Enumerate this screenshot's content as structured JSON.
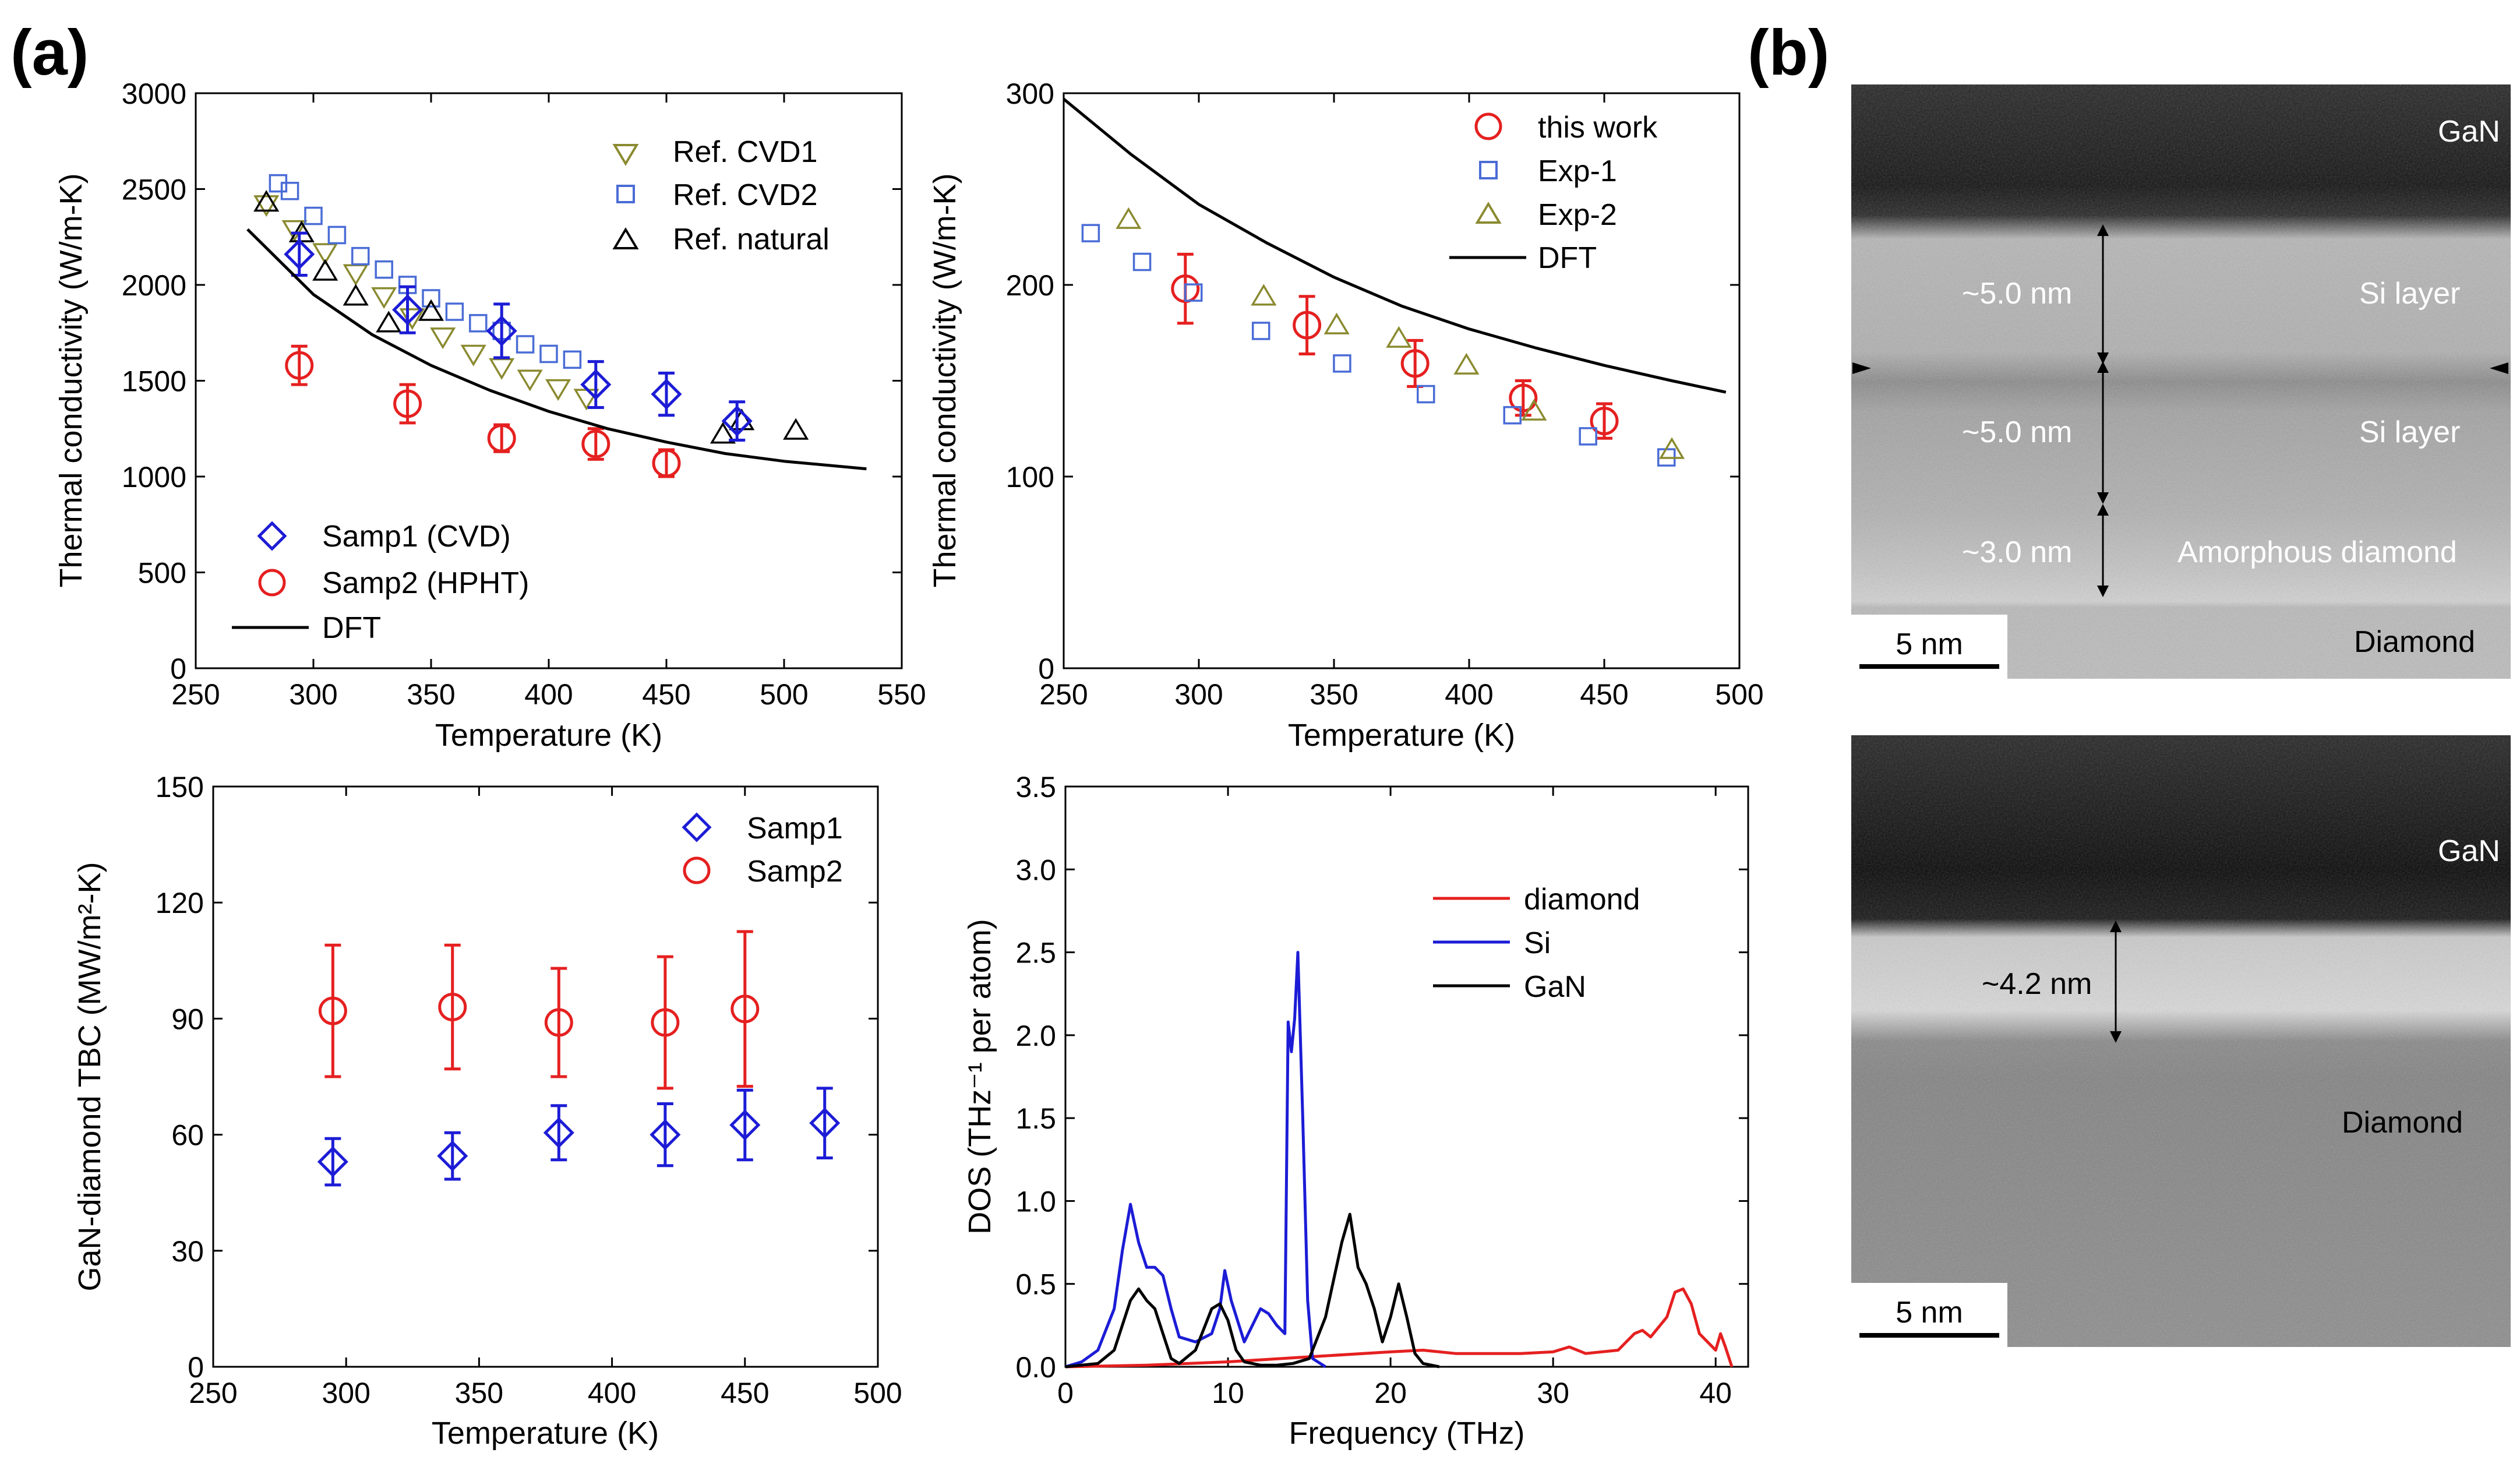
{
  "panel_labels": {
    "a": "(a)",
    "b": "(b)"
  },
  "colors": {
    "blue": "#1c1cd6",
    "red": "#e52020",
    "olive": "#8a8a30",
    "lightblue": "#4a6cd6",
    "black": "#000000"
  },
  "chart_data": [
    {
      "id": "top-left",
      "type": "scatter",
      "xlabel": "Temperature (K)",
      "ylabel": "Thermal conductivity (W/m-K)",
      "xlim": [
        250,
        550
      ],
      "ylim": [
        0,
        3000
      ],
      "xticks": [
        250,
        300,
        350,
        400,
        450,
        500,
        550
      ],
      "yticks": [
        0,
        500,
        1000,
        1500,
        2000,
        2500,
        3000
      ],
      "legend_top": [
        "Ref. CVD1",
        "Ref. CVD2",
        "Ref. natural"
      ],
      "legend_bottom": [
        "Samp1 (CVD)",
        "Samp2 (HPHT)",
        "DFT"
      ],
      "series": [
        {
          "name": "Ref. CVD1",
          "marker": "tri-down",
          "color": "#8a8a30",
          "x": [
            280,
            292,
            305,
            318,
            330,
            342,
            355,
            368,
            380,
            392,
            404,
            416
          ],
          "y": [
            2420,
            2290,
            2170,
            2060,
            1940,
            1830,
            1730,
            1640,
            1570,
            1510,
            1460,
            1410
          ]
        },
        {
          "name": "Ref. CVD2",
          "marker": "square",
          "color": "#4a6cd6",
          "x": [
            285,
            290,
            300,
            310,
            320,
            330,
            340,
            350,
            360,
            370,
            380,
            390,
            400,
            410
          ],
          "y": [
            2530,
            2490,
            2360,
            2260,
            2150,
            2080,
            2000,
            1930,
            1860,
            1800,
            1760,
            1690,
            1640,
            1610
          ]
        },
        {
          "name": "Ref. natural",
          "marker": "tri-up",
          "color": "#000000",
          "x": [
            280,
            295,
            305,
            318,
            332,
            350,
            474,
            482,
            505
          ],
          "y": [
            2430,
            2270,
            2070,
            1940,
            1800,
            1860,
            1220,
            1290,
            1240
          ]
        },
        {
          "name": "Samp1 (CVD)",
          "marker": "diamond",
          "color": "#1c1cd6",
          "x": [
            294,
            340,
            380,
            420,
            450,
            480
          ],
          "y": [
            2160,
            1870,
            1760,
            1480,
            1430,
            1290
          ],
          "err": [
            110,
            120,
            140,
            120,
            110,
            100
          ]
        },
        {
          "name": "Samp2 (HPHT)",
          "marker": "circle",
          "color": "#e52020",
          "x": [
            294,
            340,
            380,
            420,
            450
          ],
          "y": [
            1580,
            1380,
            1200,
            1170,
            1070
          ],
          "err": [
            100,
            100,
            70,
            80,
            70
          ]
        },
        {
          "name": "DFT",
          "marker": "line",
          "color": "#000000",
          "x": [
            272,
            300,
            325,
            350,
            375,
            400,
            425,
            450,
            475,
            500,
            535
          ],
          "y": [
            2290,
            1950,
            1740,
            1580,
            1450,
            1340,
            1250,
            1180,
            1120,
            1080,
            1040
          ]
        }
      ]
    },
    {
      "id": "top-right",
      "type": "scatter",
      "xlabel": "Temperature (K)",
      "ylabel": "Thermal conductivity (W/m-K)",
      "xlim": [
        250,
        500
      ],
      "ylim": [
        0,
        300
      ],
      "xticks": [
        250,
        300,
        350,
        400,
        450,
        500
      ],
      "yticks": [
        0,
        100,
        200,
        300
      ],
      "legend": [
        "this work",
        "Exp-1",
        "Exp-2",
        "DFT"
      ],
      "series": [
        {
          "name": "this work",
          "marker": "circle",
          "color": "#e52020",
          "x": [
            295,
            340,
            380,
            420,
            450
          ],
          "y": [
            198,
            179,
            159,
            141,
            129
          ],
          "err": [
            18,
            15,
            12,
            9,
            9
          ]
        },
        {
          "name": "Exp-1",
          "marker": "square",
          "color": "#4a6cd6",
          "x": [
            260,
            279,
            298,
            323,
            353,
            384,
            416,
            444,
            473
          ],
          "y": [
            227,
            212,
            196,
            176,
            159,
            143,
            132,
            121,
            110
          ]
        },
        {
          "name": "Exp-2",
          "marker": "tri-up",
          "color": "#8a8a30",
          "x": [
            274,
            324,
            351,
            374,
            399,
            424,
            475
          ],
          "y": [
            234,
            194,
            179,
            172,
            158,
            134,
            114
          ]
        },
        {
          "name": "DFT",
          "marker": "line",
          "color": "#000000",
          "x": [
            250,
            275,
            300,
            325,
            350,
            375,
            400,
            425,
            450,
            475,
            495
          ],
          "y": [
            297,
            268,
            242,
            222,
            204,
            189,
            177,
            167,
            158,
            150,
            144
          ]
        }
      ]
    },
    {
      "id": "bottom-left",
      "type": "scatter",
      "xlabel": "Temperature (K)",
      "ylabel": "GaN-diamond TBC (MW/m²-K)",
      "xlim": [
        250,
        500
      ],
      "ylim": [
        0,
        150
      ],
      "xticks": [
        250,
        300,
        350,
        400,
        450,
        500
      ],
      "yticks": [
        0,
        30,
        60,
        90,
        120,
        150
      ],
      "legend": [
        "Samp1",
        "Samp2"
      ],
      "series": [
        {
          "name": "Samp1",
          "marker": "diamond",
          "color": "#1c1cd6",
          "x": [
            295,
            340,
            380,
            420,
            450,
            480
          ],
          "y": [
            53,
            54.5,
            60.5,
            60,
            62.5,
            63
          ],
          "err": [
            6,
            6,
            7,
            8,
            9,
            9
          ]
        },
        {
          "name": "Samp2",
          "marker": "circle",
          "color": "#e52020",
          "x": [
            295,
            340,
            380,
            420,
            450
          ],
          "y": [
            92,
            93,
            89,
            89,
            92.5
          ],
          "err": [
            17,
            16,
            14,
            17,
            20
          ]
        }
      ]
    },
    {
      "id": "bottom-right",
      "type": "line",
      "xlabel": "Frequency (THz)",
      "ylabel": "DOS (THz⁻¹ per atom)",
      "xlim": [
        0,
        42
      ],
      "ylim": [
        0,
        3.5
      ],
      "xticks": [
        0,
        10,
        20,
        30,
        40
      ],
      "yticks": [
        0.0,
        0.5,
        1.0,
        1.5,
        2.0,
        2.5,
        3.0,
        3.5
      ],
      "legend": [
        "diamond",
        "Si",
        "GaN"
      ],
      "series": [
        {
          "name": "diamond",
          "color": "#e52020",
          "x": [
            0,
            5,
            10,
            15,
            20,
            22,
            24,
            26,
            28,
            30,
            31,
            32,
            34,
            35,
            35.5,
            36,
            37,
            37.5,
            38,
            38.5,
            39,
            39.5,
            40,
            40.3,
            40.6,
            41
          ],
          "y": [
            0,
            0.01,
            0.03,
            0.06,
            0.09,
            0.1,
            0.08,
            0.08,
            0.08,
            0.09,
            0.12,
            0.08,
            0.1,
            0.2,
            0.22,
            0.18,
            0.3,
            0.45,
            0.47,
            0.38,
            0.2,
            0.15,
            0.1,
            0.2,
            0.12,
            0
          ]
        },
        {
          "name": "Si",
          "color": "#1c1cd6",
          "x": [
            0,
            1,
            2,
            3,
            3.5,
            4,
            4.5,
            5,
            5.5,
            6,
            6.5,
            7,
            8,
            9,
            9.5,
            9.8,
            10.2,
            11,
            12,
            12.5,
            13,
            13.5,
            13.7,
            13.9,
            14.1,
            14.3,
            14.6,
            14.9,
            15.2,
            16
          ],
          "y": [
            0,
            0.03,
            0.1,
            0.35,
            0.7,
            0.98,
            0.75,
            0.6,
            0.6,
            0.55,
            0.35,
            0.18,
            0.15,
            0.2,
            0.35,
            0.58,
            0.4,
            0.15,
            0.35,
            0.32,
            0.25,
            0.2,
            2.08,
            1.9,
            2.1,
            2.5,
            1.5,
            0.4,
            0.05,
            0
          ]
        },
        {
          "name": "GaN",
          "color": "#000000",
          "x": [
            0,
            2,
            3,
            4,
            4.5,
            5,
            5.5,
            6,
            6.5,
            7,
            8,
            9,
            9.5,
            10,
            10.5,
            11,
            12,
            13,
            14,
            15,
            16,
            17,
            17.5,
            18,
            18.5,
            19,
            19.5,
            20,
            20.5,
            21,
            21.5,
            22,
            23
          ],
          "y": [
            0,
            0.02,
            0.1,
            0.4,
            0.47,
            0.4,
            0.35,
            0.2,
            0.05,
            0.02,
            0.1,
            0.35,
            0.38,
            0.28,
            0.1,
            0.03,
            0.01,
            0.01,
            0.02,
            0.05,
            0.3,
            0.75,
            0.92,
            0.6,
            0.5,
            0.35,
            0.15,
            0.3,
            0.5,
            0.3,
            0.08,
            0.02,
            0
          ]
        }
      ]
    }
  ],
  "tem": {
    "top": {
      "gan_label": "GaN",
      "si_label_1": "Si layer",
      "si_label_2": "Si layer",
      "amorphous_label": "Amorphous diamond",
      "diamond_label": "Diamond",
      "thickness_1": "~5.0 nm",
      "thickness_2": "~5.0 nm",
      "thickness_3": "~3.0 nm",
      "scale_bar": "5 nm"
    },
    "bottom": {
      "gan_label": "GaN",
      "diamond_label": "Diamond",
      "thickness": "~4.2 nm",
      "scale_bar": "5 nm"
    }
  }
}
